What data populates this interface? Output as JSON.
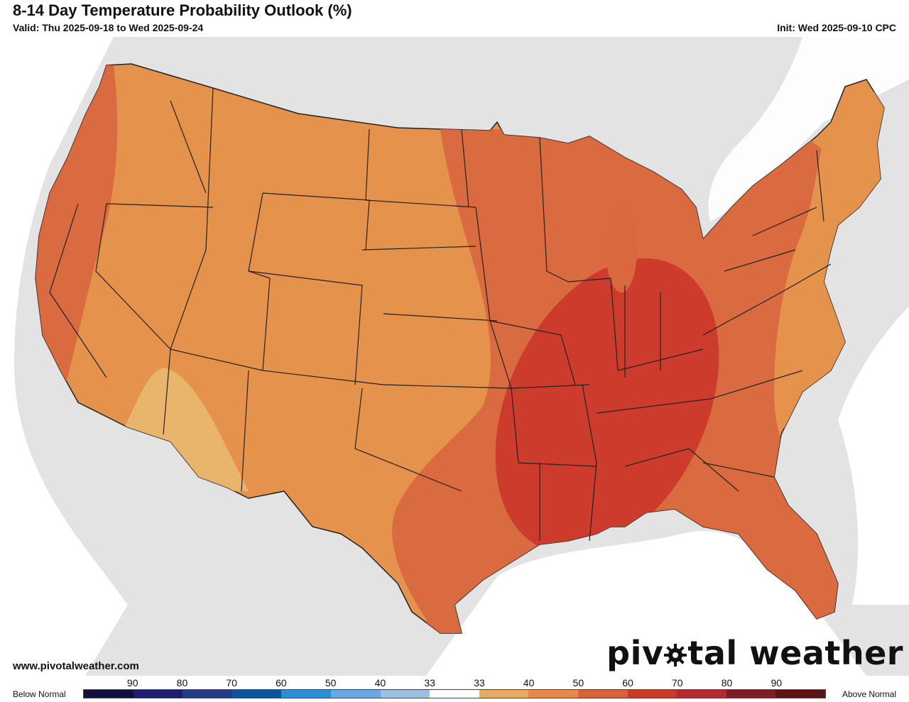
{
  "header": {
    "title": "8-14 Day Temperature Probability Outlook (%)",
    "valid": "Valid: Thu 2025-09-18 to Wed 2025-09-24",
    "init": "Init: Wed 2025-09-10 CPC"
  },
  "footer": {
    "url": "www.pivotalweather.com",
    "brand_left": "piv",
    "brand_right": "tal weather"
  },
  "legend": {
    "below_label": "Below Normal",
    "above_label": "Above Normal",
    "numbers": [
      "90",
      "80",
      "70",
      "60",
      "50",
      "40",
      "33",
      "33",
      "40",
      "50",
      "60",
      "70",
      "80",
      "90"
    ],
    "colors": [
      "#13103d",
      "#1d1f6e",
      "#233c81",
      "#0d55a0",
      "#2c8fd6",
      "#6aaae4",
      "#9cc0e4",
      "#ffffff",
      "#e8ab61",
      "#e8894a",
      "#d9623a",
      "#cc3a2a",
      "#b42a2f",
      "#7e1d22",
      "#5a1518"
    ]
  },
  "map": {
    "colors": {
      "land_40": "#e5924d",
      "land_33": "#e9b56d",
      "land_50": "#d9683e",
      "land_60": "#cc3b2c",
      "land_70": "#c0262a",
      "background": "#e3e3e3",
      "borders": "#222222"
    }
  }
}
